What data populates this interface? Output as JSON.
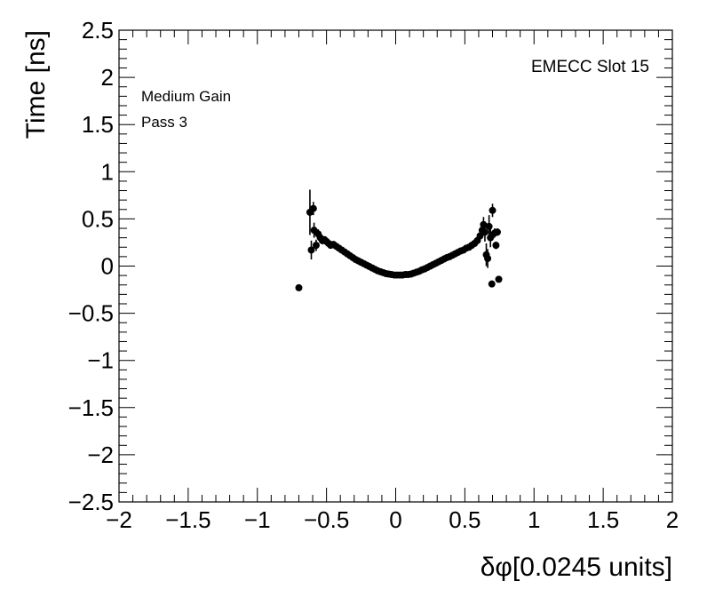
{
  "chart_data": {
    "type": "scatter",
    "title": "",
    "xlabel": "δφ[0.0245 units]",
    "ylabel": "Time [ns]",
    "xlim": [
      -2,
      2
    ],
    "ylim": [
      -2.5,
      2.5
    ],
    "x_ticks": [
      "−2",
      "−1.5",
      "−1",
      "−0.5",
      "0",
      "0.5",
      "1",
      "1.5",
      "2"
    ],
    "y_ticks": [
      "−2.5",
      "−2",
      "−1.5",
      "−1",
      "−0.5",
      "0",
      "0.5",
      "1",
      "1.5",
      "2",
      "2.5"
    ],
    "annotations": {
      "label_top_right": "EMECC Slot 15",
      "label_line1": "Medium Gain",
      "label_line2": "Pass 3"
    },
    "grid": false,
    "marker_color": "#000000",
    "series": [
      {
        "points": [
          {
            "x": -0.7,
            "y": -0.23,
            "err": 0.0
          },
          {
            "x": -0.62,
            "y": 0.57,
            "err": 0.24
          },
          {
            "x": -0.61,
            "y": 0.17,
            "err": 0.1
          },
          {
            "x": -0.595,
            "y": 0.61,
            "err": 0.07
          },
          {
            "x": -0.59,
            "y": 0.38,
            "err": 0.08
          },
          {
            "x": -0.575,
            "y": 0.22,
            "err": 0.06
          },
          {
            "x": -0.56,
            "y": 0.34,
            "err": 0.05
          },
          {
            "x": -0.545,
            "y": 0.3,
            "err": 0.05
          },
          {
            "x": -0.53,
            "y": 0.27,
            "err": 0.04
          },
          {
            "x": -0.515,
            "y": 0.28,
            "err": 0.03
          },
          {
            "x": -0.5,
            "y": 0.26,
            "err": 0.03
          },
          {
            "x": -0.485,
            "y": 0.24,
            "err": 0.02
          },
          {
            "x": -0.47,
            "y": 0.22,
            "err": 0.02
          },
          {
            "x": -0.45,
            "y": 0.23,
            "err": 0.02
          },
          {
            "x": -0.43,
            "y": 0.21,
            "err": 0.02
          },
          {
            "x": -0.41,
            "y": 0.19,
            "err": 0.02
          },
          {
            "x": -0.39,
            "y": 0.17,
            "err": 0.01
          },
          {
            "x": -0.37,
            "y": 0.15,
            "err": 0.01
          },
          {
            "x": -0.35,
            "y": 0.13,
            "err": 0.01
          },
          {
            "x": -0.33,
            "y": 0.11,
            "err": 0.01
          },
          {
            "x": -0.31,
            "y": 0.09,
            "err": 0.01
          },
          {
            "x": -0.29,
            "y": 0.07,
            "err": 0.01
          },
          {
            "x": -0.27,
            "y": 0.055,
            "err": 0.01
          },
          {
            "x": -0.25,
            "y": 0.04,
            "err": 0.01
          },
          {
            "x": -0.23,
            "y": 0.025,
            "err": 0.01
          },
          {
            "x": -0.21,
            "y": 0.01,
            "err": 0.01
          },
          {
            "x": -0.19,
            "y": -0.005,
            "err": 0.01
          },
          {
            "x": -0.17,
            "y": -0.02,
            "err": 0.01
          },
          {
            "x": -0.15,
            "y": -0.035,
            "err": 0.01
          },
          {
            "x": -0.13,
            "y": -0.05,
            "err": 0.01
          },
          {
            "x": -0.11,
            "y": -0.06,
            "err": 0.01
          },
          {
            "x": -0.09,
            "y": -0.07,
            "err": 0.01
          },
          {
            "x": -0.07,
            "y": -0.08,
            "err": 0.01
          },
          {
            "x": -0.05,
            "y": -0.085,
            "err": 0.01
          },
          {
            "x": -0.03,
            "y": -0.09,
            "err": 0.01
          },
          {
            "x": -0.01,
            "y": -0.095,
            "err": 0.01
          },
          {
            "x": 0.01,
            "y": -0.095,
            "err": 0.01
          },
          {
            "x": 0.03,
            "y": -0.095,
            "err": 0.01
          },
          {
            "x": 0.05,
            "y": -0.095,
            "err": 0.01
          },
          {
            "x": 0.07,
            "y": -0.09,
            "err": 0.01
          },
          {
            "x": 0.09,
            "y": -0.09,
            "err": 0.01
          },
          {
            "x": 0.11,
            "y": -0.085,
            "err": 0.01
          },
          {
            "x": 0.13,
            "y": -0.075,
            "err": 0.01
          },
          {
            "x": 0.15,
            "y": -0.065,
            "err": 0.01
          },
          {
            "x": 0.17,
            "y": -0.055,
            "err": 0.01
          },
          {
            "x": 0.19,
            "y": -0.04,
            "err": 0.01
          },
          {
            "x": 0.21,
            "y": -0.03,
            "err": 0.01
          },
          {
            "x": 0.23,
            "y": -0.015,
            "err": 0.01
          },
          {
            "x": 0.25,
            "y": 0.0,
            "err": 0.01
          },
          {
            "x": 0.27,
            "y": 0.015,
            "err": 0.01
          },
          {
            "x": 0.29,
            "y": 0.03,
            "err": 0.01
          },
          {
            "x": 0.31,
            "y": 0.045,
            "err": 0.01
          },
          {
            "x": 0.33,
            "y": 0.06,
            "err": 0.01
          },
          {
            "x": 0.35,
            "y": 0.075,
            "err": 0.01
          },
          {
            "x": 0.37,
            "y": 0.09,
            "err": 0.01
          },
          {
            "x": 0.39,
            "y": 0.1,
            "err": 0.01
          },
          {
            "x": 0.41,
            "y": 0.115,
            "err": 0.01
          },
          {
            "x": 0.43,
            "y": 0.13,
            "err": 0.01
          },
          {
            "x": 0.45,
            "y": 0.145,
            "err": 0.02
          },
          {
            "x": 0.47,
            "y": 0.16,
            "err": 0.02
          },
          {
            "x": 0.49,
            "y": 0.17,
            "err": 0.02
          },
          {
            "x": 0.51,
            "y": 0.19,
            "err": 0.02
          },
          {
            "x": 0.53,
            "y": 0.2,
            "err": 0.02
          },
          {
            "x": 0.55,
            "y": 0.22,
            "err": 0.03
          },
          {
            "x": 0.57,
            "y": 0.24,
            "err": 0.03
          },
          {
            "x": 0.59,
            "y": 0.27,
            "err": 0.04
          },
          {
            "x": 0.61,
            "y": 0.32,
            "err": 0.05
          },
          {
            "x": 0.625,
            "y": 0.38,
            "err": 0.06
          },
          {
            "x": 0.635,
            "y": 0.44,
            "err": 0.08
          },
          {
            "x": 0.645,
            "y": 0.36,
            "err": 0.1
          },
          {
            "x": 0.655,
            "y": 0.12,
            "err": 0.12
          },
          {
            "x": 0.665,
            "y": 0.08,
            "err": 0.1
          },
          {
            "x": 0.675,
            "y": 0.42,
            "err": 0.12
          },
          {
            "x": 0.685,
            "y": 0.3,
            "err": 0.1
          },
          {
            "x": 0.695,
            "y": -0.19,
            "err": 0.0
          },
          {
            "x": 0.7,
            "y": 0.59,
            "err": 0.07
          },
          {
            "x": 0.715,
            "y": 0.35,
            "err": 0.05
          },
          {
            "x": 0.725,
            "y": 0.22,
            "err": 0.04
          },
          {
            "x": 0.735,
            "y": 0.36,
            "err": 0.04
          },
          {
            "x": 0.745,
            "y": -0.14,
            "err": 0.0
          }
        ]
      }
    ]
  }
}
